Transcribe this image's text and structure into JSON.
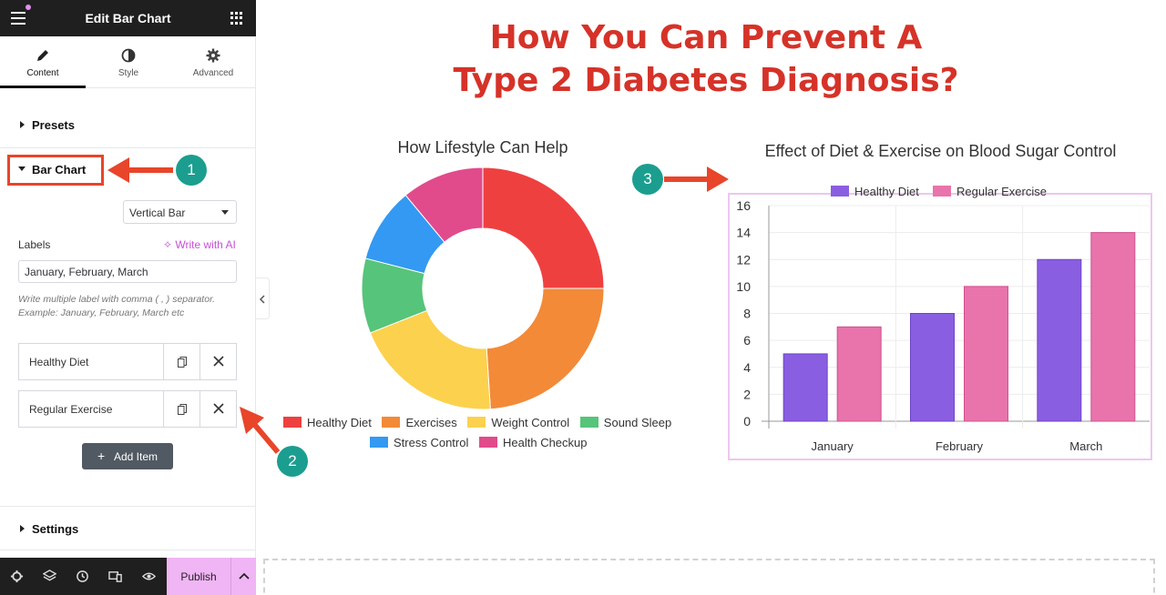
{
  "editor": {
    "title": "Edit Bar Chart",
    "tabs": [
      {
        "label": "Content",
        "icon": "pencil-icon",
        "active": true
      },
      {
        "label": "Style",
        "icon": "contrast-icon",
        "active": false
      },
      {
        "label": "Advanced",
        "icon": "gear-icon",
        "active": false
      }
    ],
    "sections": {
      "presets": "Presets",
      "bar_chart": "Bar Chart",
      "settings": "Settings"
    },
    "chart_type_select": "Vertical Bar",
    "labels_label": "Labels",
    "write_ai": "Write with AI",
    "labels_value": "January, February, March",
    "help_text": "Write multiple label with comma ( , ) separator. Example: January, February, March etc",
    "repeater_items": [
      "Healthy Diet",
      "Regular Exercise"
    ],
    "add_item": "Add Item",
    "publish": "Publish",
    "accent": "#f0b5f4"
  },
  "annotations": {
    "badge_1": "1",
    "badge_2": "2",
    "badge_3": "3",
    "arrow_color": "#e8452a",
    "badge_color": "#1b9e8f"
  },
  "page": {
    "title_line1": "How You Can Prevent A",
    "title_line2": "Type 2 Diabetes Diagnosis?",
    "title_color": "#d63228"
  },
  "chart_data": [
    {
      "type": "pie",
      "title": "How Lifestyle Can Help",
      "donut": true,
      "labels": [
        "Healthy Diet",
        "Exercises",
        "Weight Control",
        "Sound Sleep",
        "Stress Control",
        "Health Checkup"
      ],
      "values": [
        25,
        24,
        20,
        10,
        10,
        11
      ],
      "colors": [
        "#ef4040",
        "#f28a38",
        "#fcd14d",
        "#56c47a",
        "#3399f2",
        "#e14b8b"
      ],
      "legend": "bottom"
    },
    {
      "type": "bar",
      "title": "Effect of Diet & Exercise on Blood Sugar Control",
      "categories": [
        "January",
        "February",
        "March"
      ],
      "series": [
        {
          "name": "Healthy Diet",
          "values": [
            5,
            8,
            12
          ],
          "color": "#8a5ee0"
        },
        {
          "name": "Regular Exercise",
          "values": [
            7,
            10,
            14
          ],
          "color": "#e874ab"
        }
      ],
      "ylim": [
        0,
        16
      ],
      "yticks": [
        0,
        2,
        4,
        6,
        8,
        10,
        12,
        14,
        16
      ],
      "grid": true,
      "legend": "top"
    }
  ]
}
